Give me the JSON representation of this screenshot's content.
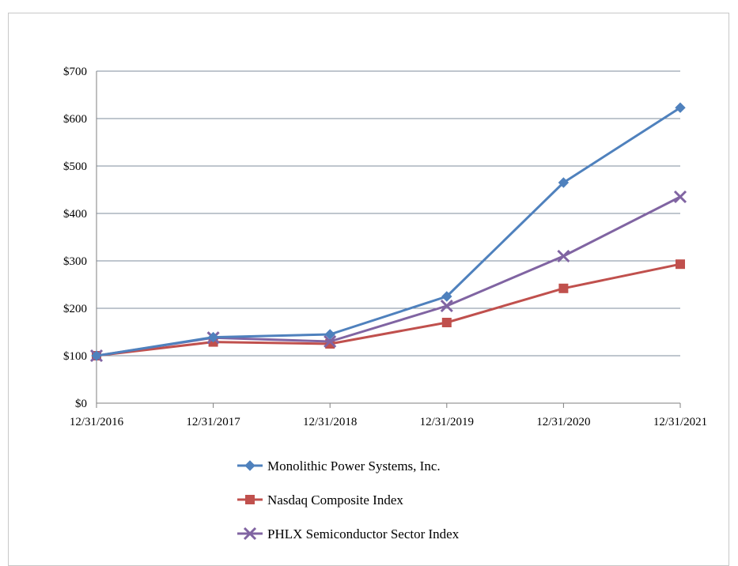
{
  "chart_data": {
    "type": "line",
    "title": "",
    "xlabel": "",
    "ylabel": "",
    "categories": [
      "12/31/2016",
      "12/31/2017",
      "12/31/2018",
      "12/31/2019",
      "12/31/2020",
      "12/31/2021"
    ],
    "ylim": [
      0,
      700
    ],
    "yticks": [
      0,
      100,
      200,
      300,
      400,
      500,
      600,
      700
    ],
    "ytick_labels": [
      "$0",
      "$100",
      "$200",
      "$300",
      "$400",
      "$500",
      "$600",
      "$700"
    ],
    "grid": true,
    "legend_position": "bottom",
    "series": [
      {
        "name": "Monolithic Power Systems, Inc.",
        "values": [
          100,
          139,
          145,
          225,
          465,
          623
        ],
        "color": "#4F81BD",
        "marker": "diamond"
      },
      {
        "name": "Nasdaq Composite Index",
        "values": [
          100,
          129,
          125,
          170,
          242,
          293
        ],
        "color": "#C0504D",
        "marker": "square"
      },
      {
        "name": "PHLX Semiconductor Sector Index",
        "values": [
          100,
          138,
          130,
          205,
          310,
          435
        ],
        "color": "#8064A2",
        "marker": "x"
      }
    ]
  }
}
